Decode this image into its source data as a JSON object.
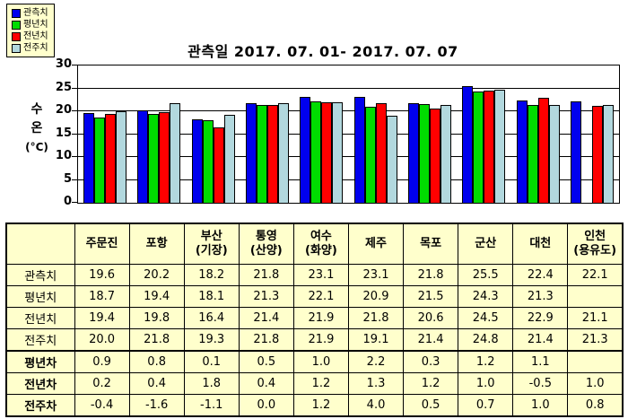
{
  "chart_data": {
    "type": "bar",
    "title": "관측일 2017. 07. 01-  2017. 07. 07",
    "ylabel_lines": [
      "수",
      "온",
      "(°C)"
    ],
    "ylim": [
      0,
      30
    ],
    "yticks": [
      0,
      5,
      10,
      15,
      20,
      25,
      30
    ],
    "grid": true,
    "legend_position": "top-left",
    "categories": [
      "주문진",
      "포항",
      "부산(기장)",
      "통영(산양)",
      "여수(화양)",
      "제주",
      "목포",
      "군산",
      "대천",
      "인천(용유도)"
    ],
    "series": [
      {
        "name": "관측치",
        "color": "#0000EE",
        "values": [
          19.6,
          20.2,
          18.2,
          21.8,
          23.1,
          23.1,
          21.8,
          25.5,
          22.4,
          22.1
        ]
      },
      {
        "name": "평년치",
        "color": "#00DC00",
        "values": [
          18.7,
          19.4,
          18.1,
          21.3,
          22.1,
          20.9,
          21.5,
          24.3,
          21.3,
          null
        ]
      },
      {
        "name": "전년치",
        "color": "#FF0000",
        "values": [
          19.4,
          19.8,
          16.4,
          21.4,
          21.9,
          21.8,
          20.6,
          24.5,
          22.9,
          21.1
        ]
      },
      {
        "name": "전주치",
        "color": "#B2D8DE",
        "values": [
          20.0,
          21.8,
          19.3,
          21.8,
          21.9,
          19.1,
          21.4,
          24.8,
          21.4,
          21.3
        ]
      }
    ]
  },
  "table": {
    "bg_color": "#FFFFCC",
    "columns": [
      [
        "주문진"
      ],
      [
        "포항"
      ],
      [
        "부산",
        "(기장)"
      ],
      [
        "통영",
        "(산양)"
      ],
      [
        "여수",
        "(화양)"
      ],
      [
        "제주"
      ],
      [
        "목포"
      ],
      [
        "군산"
      ],
      [
        "대천"
      ],
      [
        "인천",
        "(용유도)"
      ]
    ],
    "rows": [
      {
        "label": "관측치",
        "bold": false,
        "values": [
          "19.6",
          "20.2",
          "18.2",
          "21.8",
          "23.1",
          "23.1",
          "21.8",
          "25.5",
          "22.4",
          "22.1"
        ]
      },
      {
        "label": "평년치",
        "bold": false,
        "values": [
          "18.7",
          "19.4",
          "18.1",
          "21.3",
          "22.1",
          "20.9",
          "21.5",
          "24.3",
          "21.3",
          ""
        ]
      },
      {
        "label": "전년치",
        "bold": false,
        "values": [
          "19.4",
          "19.8",
          "16.4",
          "21.4",
          "21.9",
          "21.8",
          "20.6",
          "24.5",
          "22.9",
          "21.1"
        ]
      },
      {
        "label": "전주치",
        "bold": false,
        "values": [
          "20.0",
          "21.8",
          "19.3",
          "21.8",
          "21.9",
          "19.1",
          "21.4",
          "24.8",
          "21.4",
          "21.3"
        ]
      },
      {
        "label": "평년차",
        "bold": true,
        "values": [
          "0.9",
          "0.8",
          "0.1",
          "0.5",
          "1.0",
          "2.2",
          "0.3",
          "1.2",
          "1.1",
          ""
        ]
      },
      {
        "label": "전년차",
        "bold": true,
        "values": [
          "0.2",
          "0.4",
          "1.8",
          "0.4",
          "1.2",
          "1.3",
          "1.2",
          "1.0",
          "-0.5",
          "1.0"
        ]
      },
      {
        "label": "전주차",
        "bold": true,
        "values": [
          "-0.4",
          "-1.6",
          "-1.1",
          "0.0",
          "1.2",
          "4.0",
          "0.5",
          "0.7",
          "1.0",
          "0.8"
        ]
      }
    ]
  }
}
